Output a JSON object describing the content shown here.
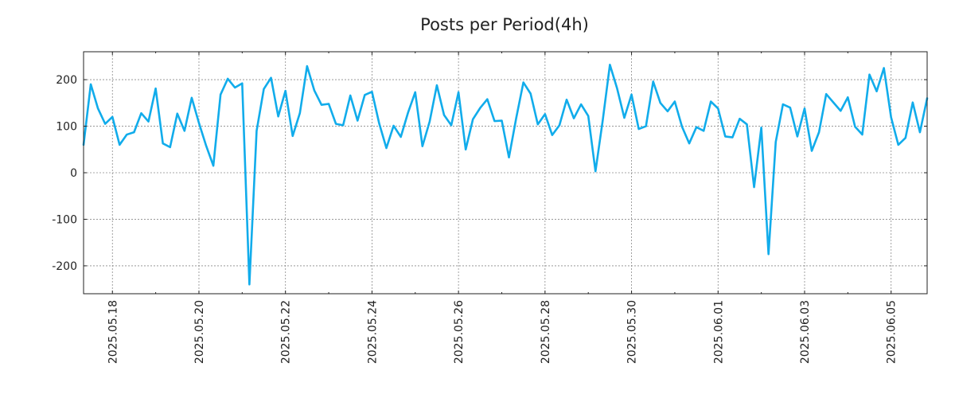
{
  "chart_data": {
    "type": "line",
    "title": "Posts per Period(4h)",
    "xlabel": "",
    "ylabel": "",
    "color": "#11aceb",
    "x_start": "2025.05.17 08:00",
    "interval_hours": 4,
    "xlim_days": [
      0,
      19.5
    ],
    "ylim": [
      -260,
      260
    ],
    "yticks": [
      -200,
      -100,
      0,
      100,
      200
    ],
    "ytick_labels": [
      "-200",
      "-100",
      "0",
      "100",
      "200"
    ],
    "xtick_days": [
      0.667,
      2.667,
      4.667,
      6.667,
      8.667,
      10.667,
      12.667,
      14.667,
      16.667,
      18.667
    ],
    "xtick_labels": [
      "2025.05.18",
      "2025.05.20",
      "2025.05.22",
      "2025.05.24",
      "2025.05.26",
      "2025.05.28",
      "2025.05.30",
      "2025.06.01",
      "2025.06.03",
      "2025.06.05"
    ],
    "minor_xtick_days": [
      1.667,
      3.667,
      5.667,
      7.667,
      9.667,
      11.667,
      13.667,
      15.667,
      17.667
    ],
    "grid": true,
    "series": [
      {
        "name": "posts",
        "values": [
          60,
          190,
          138,
          105,
          120,
          60,
          82,
          87,
          128,
          110,
          181,
          63,
          55,
          127,
          90,
          161,
          107,
          58,
          15,
          168,
          202,
          183,
          192,
          -240,
          90,
          180,
          204,
          121,
          176,
          79,
          128,
          229,
          177,
          146,
          148,
          105,
          102,
          166,
          112,
          167,
          174,
          106,
          53,
          101,
          77,
          129,
          173,
          57,
          110,
          188,
          124,
          102,
          173,
          50,
          115,
          139,
          158,
          111,
          112,
          33,
          117,
          194,
          170,
          104,
          126,
          81,
          102,
          157,
          117,
          147,
          122,
          3,
          112,
          232,
          181,
          118,
          168,
          94,
          100,
          196,
          150,
          132,
          153,
          99,
          63,
          98,
          90,
          153,
          138,
          78,
          76,
          116,
          104,
          -31,
          97,
          -175,
          66,
          147,
          140,
          78,
          138,
          47,
          87,
          169,
          151,
          133,
          162,
          99,
          82,
          211,
          175,
          225,
          119,
          60,
          75,
          151,
          87,
          160
        ]
      }
    ]
  }
}
